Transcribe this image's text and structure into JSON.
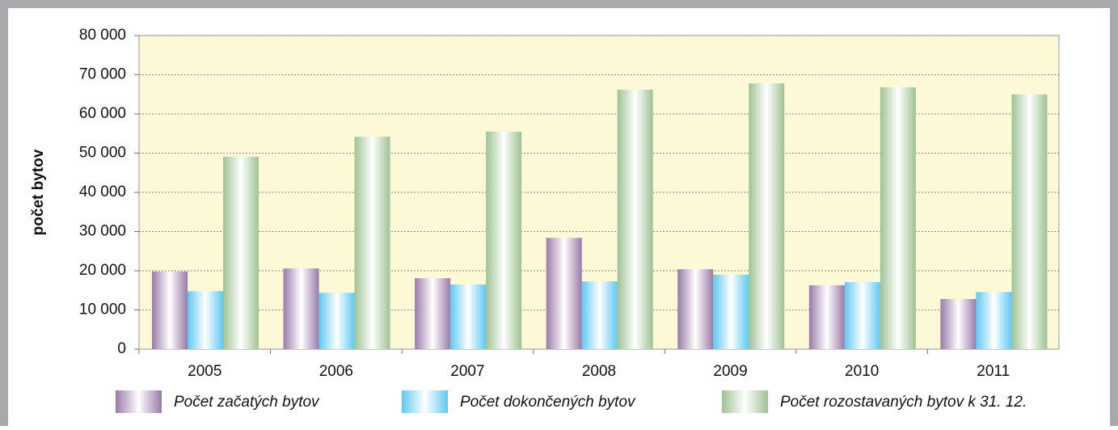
{
  "chart_data": {
    "type": "bar",
    "y_axis_label": "počet bytov",
    "categories": [
      "2005",
      "2006",
      "2007",
      "2008",
      "2009",
      "2010",
      "2011"
    ],
    "series": [
      {
        "name": "Počet začatých bytov",
        "color": "#9a7aa8",
        "values": [
          19800,
          20600,
          18100,
          28400,
          20400,
          16300,
          12800
        ]
      },
      {
        "name": "Počet dokončených bytov",
        "color": "#5fc8f2",
        "values": [
          14800,
          14400,
          16500,
          17300,
          19000,
          17100,
          14600
        ]
      },
      {
        "name": "Počet rozostavaných bytov k 31. 12.",
        "color": "#9fc294",
        "values": [
          49100,
          54200,
          55500,
          66200,
          67800,
          66800,
          65000
        ]
      }
    ],
    "ylim": [
      0,
      80000
    ],
    "yticks": [
      0,
      {
        "value": 10000,
        "label": "10 000"
      },
      {
        "value": 20000,
        "label": "20 000"
      },
      {
        "value": 30000,
        "label": "30 000"
      },
      {
        "value": 40000,
        "label": "40 000"
      },
      {
        "value": 50000,
        "label": "50 000"
      },
      {
        "value": 60000,
        "label": "60 000"
      },
      {
        "value": 70000,
        "label": "70 000"
      },
      {
        "value": 80000,
        "label": "80 000"
      }
    ],
    "grid": true
  }
}
